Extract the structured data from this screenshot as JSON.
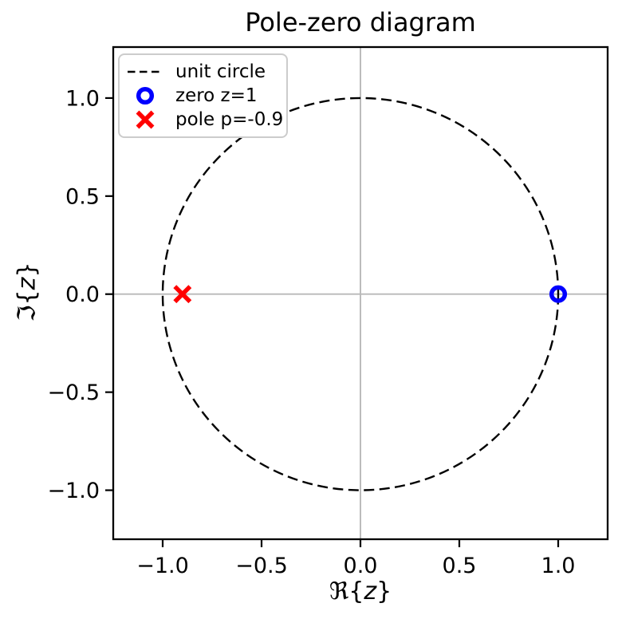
{
  "chart_data": {
    "type": "scatter",
    "title": "Pole-zero diagram",
    "xlabel": "ℜ{z}",
    "ylabel": "ℑ{z}",
    "xlim": [
      -1.25,
      1.25
    ],
    "ylim": [
      -1.25,
      1.26
    ],
    "x_ticks": [
      -1.0,
      -0.5,
      0.0,
      0.5,
      1.0
    ],
    "x_tick_labels": [
      "−1.0",
      "−0.5",
      "0.0",
      "0.5",
      "1.0"
    ],
    "y_ticks": [
      1.0,
      0.5,
      0.0,
      -0.5,
      -1.0
    ],
    "y_tick_labels": [
      "1.0",
      "0.5",
      "0.0",
      "−0.5",
      "−1.0"
    ],
    "grid": false,
    "zero_lines": {
      "x": 0,
      "y": 0,
      "color": "#b9b9b9"
    },
    "series": [
      {
        "name": "unit circle",
        "kind": "line",
        "shape": "circle",
        "center": [
          0,
          0
        ],
        "radius": 1.0,
        "linestyle": "dashed",
        "color": "#000000"
      },
      {
        "name": "zero z=1",
        "kind": "scatter",
        "marker": "o",
        "filled": false,
        "color": "#0000ff",
        "points": [
          [
            1.0,
            0.0
          ]
        ]
      },
      {
        "name": "pole p=-0.9",
        "kind": "scatter",
        "marker": "x",
        "color": "#ff0000",
        "points": [
          [
            -0.9,
            0.0
          ]
        ]
      }
    ],
    "legend": {
      "position": "upper left"
    }
  }
}
